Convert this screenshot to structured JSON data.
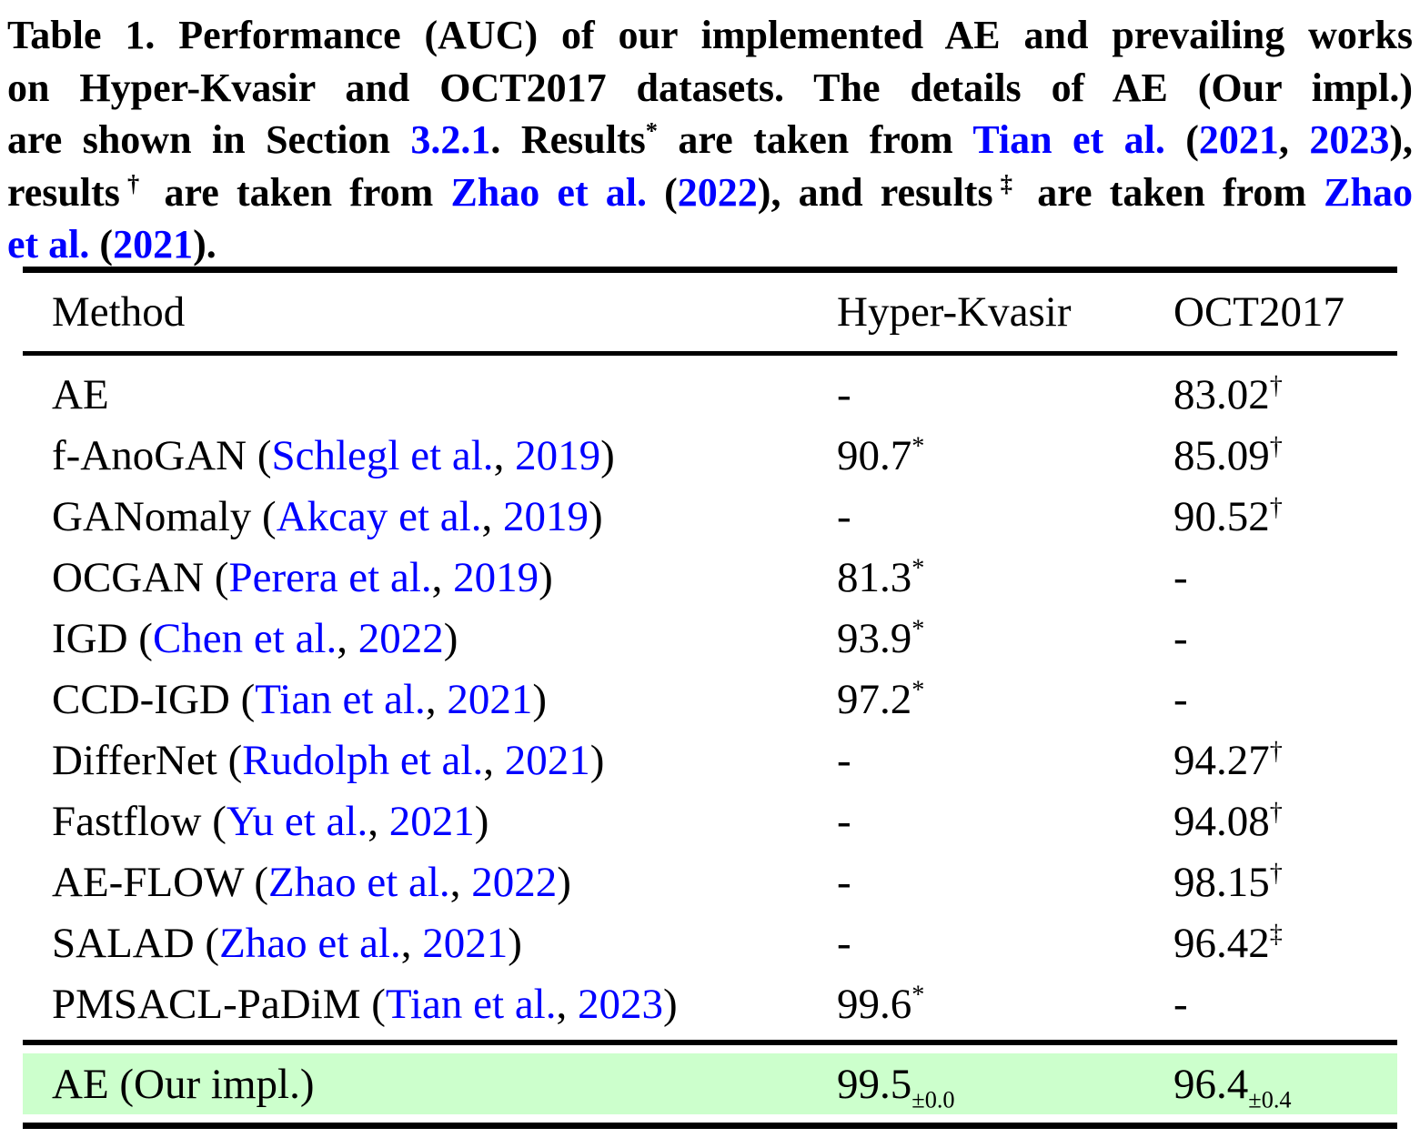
{
  "colors": {
    "link": "#0000ff",
    "highlight": "#ccffcc",
    "text": "#000000",
    "rule": "#000000"
  },
  "caption": {
    "lines": [
      [
        {
          "t": "Table 1. Performance (AUC) of our implemented AE and prevailing works"
        }
      ],
      [
        {
          "t": "on Hyper-Kvasir and OCT2017 datasets.  The details of AE (Our impl.)"
        }
      ],
      [
        {
          "t": "are shown in Section "
        },
        {
          "t": "3.2.1",
          "blue": true
        },
        {
          "t": ". Results"
        },
        {
          "t": "*",
          "sup": true
        },
        {
          "t": " are taken from "
        },
        {
          "t": "Tian et al.",
          "blue": true
        },
        {
          "t": " ("
        },
        {
          "t": "2021",
          "blue": true
        },
        {
          "t": ", "
        },
        {
          "t": "2023",
          "blue": true
        },
        {
          "t": "),"
        }
      ],
      [
        {
          "t": "results"
        },
        {
          "t": "†",
          "sup": true
        },
        {
          "t": " are taken from "
        },
        {
          "t": "Zhao et al.",
          "blue": true
        },
        {
          "t": " ("
        },
        {
          "t": "2022",
          "blue": true
        },
        {
          "t": "), and results"
        },
        {
          "t": "‡",
          "sup": true
        },
        {
          "t": " are taken from "
        },
        {
          "t": "Zhao",
          "blue": true
        }
      ],
      [
        {
          "t": "et al.",
          "blue": true
        },
        {
          "t": " ("
        },
        {
          "t": "2021",
          "blue": true
        },
        {
          "t": ")."
        }
      ]
    ]
  },
  "table": {
    "headers": [
      "Method",
      "Hyper-Kvasir",
      "OCT2017"
    ],
    "rows": [
      {
        "method": [
          {
            "t": "AE"
          }
        ],
        "values": [
          {
            "v": "-"
          },
          {
            "v": "83.02",
            "sup": "†"
          }
        ]
      },
      {
        "method": [
          {
            "t": "f-AnoGAN ("
          },
          {
            "t": "Schlegl et al.",
            "blue": true
          },
          {
            "t": ", "
          },
          {
            "t": "2019",
            "blue": true
          },
          {
            "t": ")"
          }
        ],
        "values": [
          {
            "v": "90.7",
            "sup": "*"
          },
          {
            "v": "85.09",
            "sup": "†"
          }
        ]
      },
      {
        "method": [
          {
            "t": "GANomaly ("
          },
          {
            "t": "Akcay et al.",
            "blue": true
          },
          {
            "t": ", "
          },
          {
            "t": "2019",
            "blue": true
          },
          {
            "t": ")"
          }
        ],
        "values": [
          {
            "v": "-"
          },
          {
            "v": "90.52",
            "sup": "†"
          }
        ]
      },
      {
        "method": [
          {
            "t": "OCGAN ("
          },
          {
            "t": "Perera et al.",
            "blue": true
          },
          {
            "t": ", "
          },
          {
            "t": "2019",
            "blue": true
          },
          {
            "t": ")"
          }
        ],
        "values": [
          {
            "v": "81.3",
            "sup": "*"
          },
          {
            "v": "-"
          }
        ]
      },
      {
        "method": [
          {
            "t": "IGD ("
          },
          {
            "t": "Chen et al.",
            "blue": true
          },
          {
            "t": ", "
          },
          {
            "t": "2022",
            "blue": true
          },
          {
            "t": ")"
          }
        ],
        "values": [
          {
            "v": "93.9",
            "sup": "*"
          },
          {
            "v": "-"
          }
        ]
      },
      {
        "method": [
          {
            "t": "CCD-IGD ("
          },
          {
            "t": "Tian et al.",
            "blue": true
          },
          {
            "t": ", "
          },
          {
            "t": "2021",
            "blue": true
          },
          {
            "t": ")"
          }
        ],
        "values": [
          {
            "v": "97.2",
            "sup": "*"
          },
          {
            "v": "-"
          }
        ]
      },
      {
        "method": [
          {
            "t": "DifferNet ("
          },
          {
            "t": "Rudolph et al.",
            "blue": true
          },
          {
            "t": ", "
          },
          {
            "t": "2021",
            "blue": true
          },
          {
            "t": ")"
          }
        ],
        "values": [
          {
            "v": "-"
          },
          {
            "v": "94.27",
            "sup": "†"
          }
        ]
      },
      {
        "method": [
          {
            "t": "Fastflow ("
          },
          {
            "t": "Yu et al.",
            "blue": true
          },
          {
            "t": ", "
          },
          {
            "t": "2021",
            "blue": true
          },
          {
            "t": ")"
          }
        ],
        "values": [
          {
            "v": "-"
          },
          {
            "v": "94.08",
            "sup": "†"
          }
        ]
      },
      {
        "method": [
          {
            "t": "AE-FLOW ("
          },
          {
            "t": "Zhao et al.",
            "blue": true
          },
          {
            "t": ", "
          },
          {
            "t": "2022",
            "blue": true
          },
          {
            "t": ")"
          }
        ],
        "values": [
          {
            "v": "-"
          },
          {
            "v": "98.15",
            "sup": "†"
          }
        ]
      },
      {
        "method": [
          {
            "t": "SALAD ("
          },
          {
            "t": "Zhao et al.",
            "blue": true
          },
          {
            "t": ", "
          },
          {
            "t": "2021",
            "blue": true
          },
          {
            "t": ")"
          }
        ],
        "values": [
          {
            "v": "-"
          },
          {
            "v": "96.42",
            "sup": "‡"
          }
        ]
      },
      {
        "method": [
          {
            "t": "PMSACL-PaDiM ("
          },
          {
            "t": "Tian et al.",
            "blue": true
          },
          {
            "t": ", "
          },
          {
            "t": "2023",
            "blue": true
          },
          {
            "t": ")"
          }
        ],
        "values": [
          {
            "v": "99.6",
            "sup": "*"
          },
          {
            "v": "-"
          }
        ]
      }
    ],
    "highlight": {
      "method": [
        {
          "t": "AE (Our impl.)"
        }
      ],
      "values": [
        {
          "v": "99.5",
          "sub": "±0.0"
        },
        {
          "v": "96.4",
          "sub": "±0.4"
        }
      ]
    }
  }
}
